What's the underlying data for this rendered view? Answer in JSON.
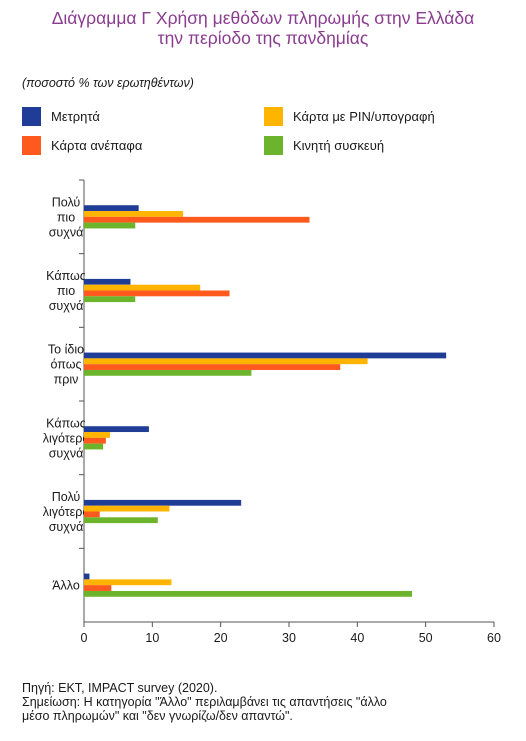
{
  "title_line1": "Διάγραμμα Γ Χρήση μεθόδων πληρωμής στην Ελλάδα",
  "title_line2": "την περίοδο της πανδημίας",
  "subtitle": "(ποσοστό % των ερωτηθέντων)",
  "footer": {
    "source": "Πηγή: ΕΚΤ, IMPACT survey (2020).",
    "note_line1": "Σημείωση: Η κατηγορία \"Άλλο\" περιλαμβάνει τις απαντήσεις \"άλλο",
    "note_line2": "μέσο πληρωμών\" και \"δεν γνωρίζω/δεν απαντώ\"."
  },
  "colors": {
    "title": "#8a3d8f",
    "cash": "#1f3c96",
    "contactless": "#ff5a1e",
    "pin": "#ffb400",
    "mobile": "#6cb42c",
    "axis": "#555555"
  },
  "chart_data": {
    "type": "bar",
    "orientation": "horizontal",
    "categories": [
      [
        "Πολύ",
        "πιο",
        "συχνά"
      ],
      [
        "Κάπως",
        "πιο",
        "συχνά"
      ],
      [
        "Το ίδιο",
        "όπως",
        "πριν"
      ],
      [
        "Κάπως",
        "λιγότερο",
        "συχνά"
      ],
      [
        "Πολύ",
        "λιγότερο",
        "συχνά"
      ],
      [
        "Άλλο"
      ]
    ],
    "series": [
      {
        "name": "Μετρητά",
        "color": "#1f3c96",
        "values": [
          8,
          6.8,
          53,
          9.5,
          23,
          0.8
        ]
      },
      {
        "name": "Κάρτα με PIN/υπογραφή",
        "color": "#ffb400",
        "values": [
          14.5,
          17,
          41.5,
          3.8,
          12.5,
          12.8
        ]
      },
      {
        "name": "Κάρτα ανέπαφα",
        "color": "#ff5a1e",
        "values": [
          33,
          21.3,
          37.5,
          3.2,
          2.3,
          4
        ]
      },
      {
        "name": "Κινητή συσκευή",
        "color": "#6cb42c",
        "values": [
          7.5,
          7.5,
          24.5,
          2.8,
          10.8,
          48
        ]
      }
    ],
    "xlim": [
      0,
      60
    ],
    "xticks": [
      "0",
      "10",
      "20",
      "30",
      "40",
      "50",
      "60"
    ],
    "legend_position": "top"
  }
}
